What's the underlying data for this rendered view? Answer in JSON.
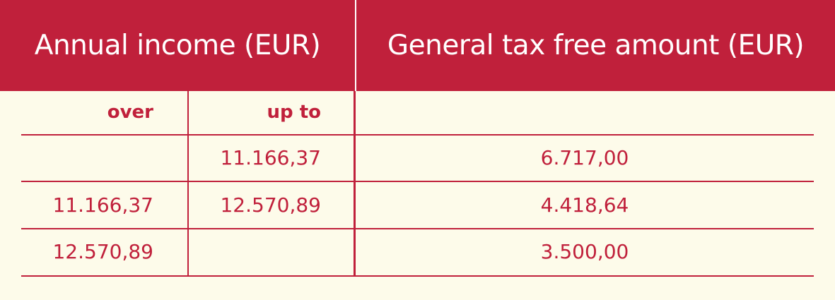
{
  "header": {
    "annual_income": "Annual income (EUR)",
    "tax_free_amount": "General tax free amount (EUR)"
  },
  "subheader": {
    "over": "over",
    "up_to": "up to",
    "amount": ""
  },
  "rows": [
    {
      "over": "",
      "up_to": "11.166,37",
      "amount": "6.717,00"
    },
    {
      "over": "11.166,37",
      "up_to": "12.570,89",
      "amount": "4.418,64"
    },
    {
      "over": "12.570,89",
      "up_to": "",
      "amount": "3.500,00"
    }
  ],
  "colors": {
    "accent": "#c0203b",
    "background": "#fdfbea",
    "header_text": "#ffffff"
  }
}
